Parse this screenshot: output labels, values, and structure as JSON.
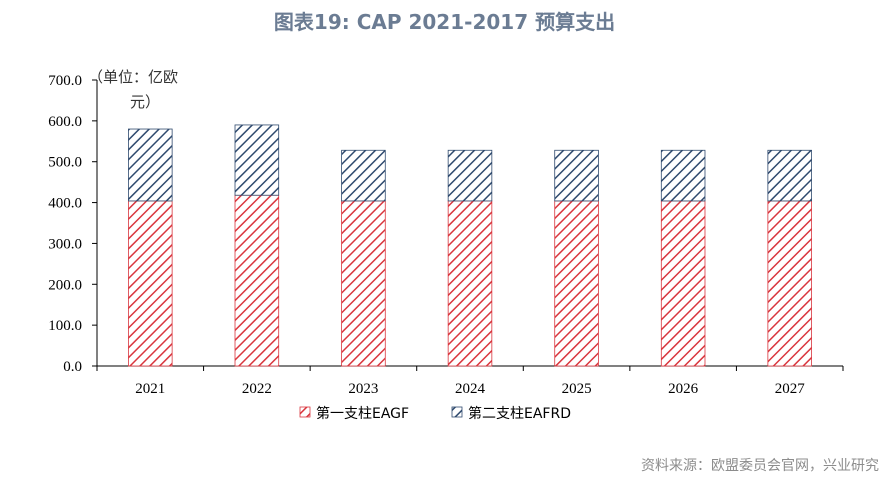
{
  "title": "图表19: CAP 2021-2017 预算支出",
  "source": "资料来源：欧盟委员会官网，兴业研究",
  "chart_data": {
    "type": "bar",
    "stacked": true,
    "categories": [
      "2021",
      "2022",
      "2023",
      "2024",
      "2025",
      "2026",
      "2027"
    ],
    "series": [
      {
        "name": "第一支柱EAGF",
        "color": "#d9363e",
        "values": [
          404.0,
          418.0,
          404.0,
          404.0,
          404.0,
          404.0,
          404.0
        ]
      },
      {
        "name": "第二支柱EAFRD",
        "color": "#2f4a6e",
        "values": [
          176.0,
          172.0,
          124.0,
          124.0,
          124.0,
          124.0,
          124.0
        ]
      }
    ],
    "ylim": [
      0,
      700
    ],
    "yticks": [
      "0.0",
      "100.0",
      "200.0",
      "300.0",
      "400.0",
      "500.0",
      "600.0",
      "700.0"
    ],
    "ylabel_line1": "（单位：亿欧",
    "ylabel_line2": "元）",
    "legend_position": "bottom"
  }
}
